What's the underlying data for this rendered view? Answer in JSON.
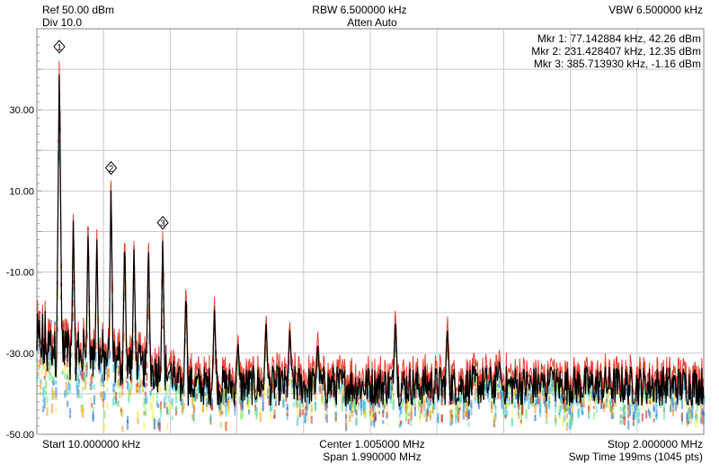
{
  "header": {
    "ref_level": "Ref 50.00 dBm",
    "div_scale": "Div 10.0",
    "rbw": "RBW 6.500000 kHz",
    "atten": "Atten Auto",
    "vbw": "VBW 6.500000 kHz"
  },
  "footer": {
    "start": "Start 10.000000 kHz",
    "center": "Center 1.005000 MHz",
    "span": "Span 1.990000 MHz",
    "stop": "Stop 2.000000 MHz",
    "sweep": "Swp Time 199ms (1045 pts)"
  },
  "markers": [
    {
      "label": "1",
      "readout": "Mkr 1: 77.142884 kHz, 42.26 dBm",
      "freq_khz": 77.142884,
      "dbm": 42.26
    },
    {
      "label": "2",
      "readout": "Mkr 2: 231.428407 kHz, 12.35 dBm",
      "freq_khz": 231.428407,
      "dbm": 12.35
    },
    {
      "label": "3",
      "readout": "Mkr 3: 385.713930 kHz, -1.16 dBm",
      "freq_khz": 385.71393,
      "dbm": -1.16
    }
  ],
  "colors": {
    "grid": "#c8c8c8",
    "trace": "#000000",
    "peak_line": "#e02010",
    "density": [
      "#1e6fe0",
      "#2fb8e8",
      "#4de0c8",
      "#7ae85a",
      "#f4ee3a",
      "#ff8a1e",
      "#e0201a"
    ]
  },
  "chart_data": {
    "type": "line",
    "title": "",
    "xlabel": "",
    "ylabel": "",
    "x_unit": "kHz",
    "y_unit": "dBm",
    "xlim": [
      10,
      2000
    ],
    "ylim": [
      -50,
      50
    ],
    "y_ticks": [
      30,
      10,
      -10,
      -30,
      -50
    ],
    "y_tick_labels": [
      "30.00",
      "10.00",
      "-10.00",
      "-30.00",
      "-50.00"
    ],
    "grid": true,
    "noise_floor_dbm": -38,
    "peaks": [
      {
        "x": 77.1,
        "y": 42.3
      },
      {
        "x": 119,
        "y": 5
      },
      {
        "x": 163,
        "y": 2
      },
      {
        "x": 189,
        "y": -1
      },
      {
        "x": 231.4,
        "y": 12.4
      },
      {
        "x": 272,
        "y": 0
      },
      {
        "x": 300,
        "y": -3
      },
      {
        "x": 343,
        "y": -2
      },
      {
        "x": 385.7,
        "y": -1.2
      },
      {
        "x": 455,
        "y": -14
      },
      {
        "x": 540,
        "y": -19
      },
      {
        "x": 610,
        "y": -27
      },
      {
        "x": 694,
        "y": -22
      },
      {
        "x": 765,
        "y": -24
      },
      {
        "x": 848,
        "y": -27
      },
      {
        "x": 1080,
        "y": -21
      },
      {
        "x": 1235,
        "y": -23
      },
      {
        "x": 1390,
        "y": -32
      },
      {
        "x": 1545,
        "y": -33
      }
    ]
  }
}
